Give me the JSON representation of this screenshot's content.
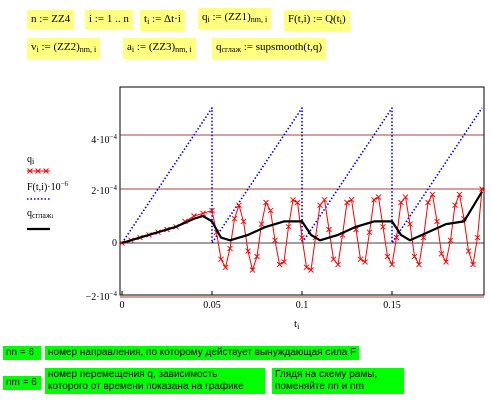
{
  "equations": {
    "n_def": "n := ZZ4",
    "i_def": "i := 1 .. n",
    "t_def": "t",
    "t_sub": "i",
    "t_rhs": " := Δt·i",
    "q_def": "q",
    "q_sub": "i",
    "q_rhs": " := (ZZ1)",
    "q_rhs_sub": "nm, i",
    "F_def": "F(t,i) := Q(t",
    "F_sub": "i",
    "F_tail": ")",
    "v_def": "v",
    "v_sub": "i",
    "v_rhs": " := (ZZ2)",
    "v_rhs_sub": "nm, i",
    "a_def": "a",
    "a_sub": "i",
    "a_rhs": " := (ZZ3)",
    "a_rhs_sub": "nm, i",
    "qsmooth_def": "q",
    "qsmooth_sub": "сглаж",
    "qsmooth_rhs": " := supsmooth(t,q)"
  },
  "legend": {
    "q_label": "q",
    "q_sub": "i",
    "F_label": "F(t,i)·10",
    "F_exp": "−6",
    "qs_label": "q",
    "qs_sub": "сглаж",
    "qs_sub2": "i"
  },
  "xaxis_label": "t",
  "xaxis_label_sub": "i",
  "nn_value": "nn = 6",
  "nn_desc": "номер направления, по которому действует вынуждающая сила F",
  "nm_value": "nm = 6",
  "nm_desc_1": "номер перемещения q, зависимость",
  "nm_desc_2": "которого от времени показана на графике",
  "hint_1": "Глядя на схему рамы,",
  "hint_2": "поменяйте nn и nm",
  "colors": {
    "q": "#ff0000",
    "F": "#0000ff",
    "qsmooth": "#000000",
    "grid_ref": "#8b0000",
    "math_bg": "#ffff80",
    "green_bg": "#00ff00"
  },
  "chart_data": {
    "type": "line",
    "x_range": [
      0,
      0.2
    ],
    "y_range": [
      -0.0002,
      0.0006
    ],
    "x_ticks": [
      "0",
      "0.05",
      "0.1",
      "0.15"
    ],
    "x_tick_values": [
      0,
      0.05,
      0.1,
      0.15
    ],
    "y_ticks": [
      "−2·10",
      "0",
      "2·10",
      "4·10"
    ],
    "y_tick_exp": [
      "−4",
      "",
      "−4",
      "−4"
    ],
    "y_tick_values": [
      -0.0002,
      0,
      0.0002,
      0.0004
    ],
    "series": [
      {
        "name": "q_i",
        "style": "red line with x markers",
        "x": [
          0,
          0.005,
          0.01,
          0.015,
          0.02,
          0.025,
          0.03,
          0.035,
          0.04,
          0.045,
          0.05,
          0.0525,
          0.055,
          0.0575,
          0.06,
          0.0625,
          0.065,
          0.0675,
          0.07,
          0.0725,
          0.075,
          0.0775,
          0.08,
          0.0825,
          0.085,
          0.0875,
          0.09,
          0.0925,
          0.095,
          0.0975,
          0.1,
          0.1025,
          0.105,
          0.1075,
          0.11,
          0.1125,
          0.115,
          0.1175,
          0.12,
          0.1225,
          0.125,
          0.1275,
          0.13,
          0.1325,
          0.135,
          0.1375,
          0.14,
          0.1425,
          0.145,
          0.1475,
          0.15,
          0.1525,
          0.155,
          0.1575,
          0.16,
          0.1625,
          0.165,
          0.1675,
          0.17,
          0.1725,
          0.175,
          0.1775,
          0.18,
          0.1825,
          0.185,
          0.1875,
          0.19,
          0.1925,
          0.195,
          0.1975,
          0.2
        ],
        "y": [
          0,
          1e-05,
          2e-05,
          3e-05,
          4e-05,
          5e-05,
          6e-05,
          8e-05,
          0.0001,
          0.00011,
          0.00012,
          4e-05,
          -6e-05,
          -9e-05,
          -2e-05,
          9e-05,
          0.00014,
          8e-05,
          -3e-05,
          -0.0001,
          -5e-05,
          7e-05,
          0.00015,
          0.00012,
          1e-05,
          -8e-05,
          -7e-05,
          6e-05,
          0.00016,
          0.00015,
          2e-05,
          -9e-05,
          -0.0001,
          2e-05,
          0.00014,
          0.00016,
          5e-05,
          -6e-05,
          -8e-05,
          3e-05,
          0.00015,
          0.00016,
          5e-05,
          -6e-05,
          -7e-05,
          4e-05,
          0.00016,
          0.00017,
          6e-05,
          -5e-05,
          -8e-05,
          2e-05,
          0.00015,
          0.00017,
          7e-05,
          -5e-05,
          -8e-05,
          2e-05,
          0.00015,
          0.00018,
          8e-05,
          -4e-05,
          -7e-05,
          1e-05,
          0.00014,
          0.00018,
          9e-05,
          -3e-05,
          -8e-05,
          2e-05,
          0.0002
        ]
      },
      {
        "name": "F(t,i)·10^−6",
        "style": "blue dotted sawtooth",
        "x": [
          0,
          0.05,
          0.05,
          0.1,
          0.1,
          0.15,
          0.15,
          0.2
        ],
        "y": [
          0,
          0.0005,
          0,
          0.0005,
          0,
          0.0005,
          0,
          0.0005
        ]
      },
      {
        "name": "q_сглаж_i",
        "style": "black thick smooth",
        "x": [
          0,
          0.01,
          0.02,
          0.03,
          0.04,
          0.045,
          0.05,
          0.055,
          0.06,
          0.07,
          0.08,
          0.09,
          0.1,
          0.105,
          0.11,
          0.12,
          0.13,
          0.14,
          0.15,
          0.155,
          0.16,
          0.17,
          0.18,
          0.19,
          0.2
        ],
        "y": [
          0,
          2e-05,
          4e-05,
          6e-05,
          9e-05,
          0.0001,
          8e-05,
          2e-05,
          1e-05,
          3e-05,
          6e-05,
          8e-05,
          8e-05,
          3e-05,
          1e-05,
          3e-05,
          6e-05,
          8e-05,
          8e-05,
          3e-05,
          1e-05,
          4e-05,
          7e-05,
          8e-05,
          0.00019
        ]
      }
    ],
    "grid": "horizontal lines at y ticks",
    "legend_position": "left, outside plot"
  }
}
